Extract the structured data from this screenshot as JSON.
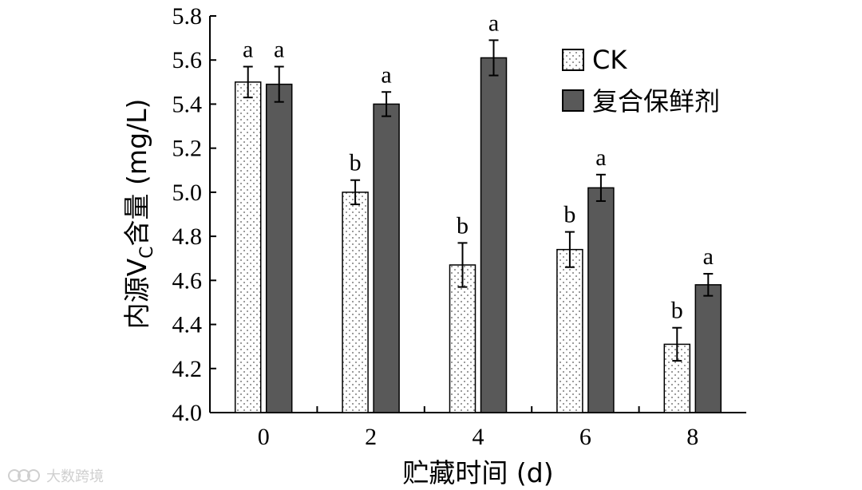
{
  "chart_data": {
    "type": "bar",
    "xlabel": "贮藏时间 (d)",
    "ylabel": {
      "prefix": "内源V",
      "subscript": "C",
      "suffix": "含量 (mg/L)"
    },
    "categories": [
      "0",
      "2",
      "4",
      "6",
      "8"
    ],
    "ylim": [
      4.0,
      5.8
    ],
    "yticks": [
      "4.0",
      "4.2",
      "4.4",
      "4.6",
      "4.8",
      "5.0",
      "5.2",
      "5.4",
      "5.6",
      "5.8"
    ],
    "legend_position": "top-right",
    "grid": false,
    "series": [
      {
        "name": "CK",
        "fill": "dotted-white",
        "values": [
          5.5,
          5.0,
          4.67,
          4.74,
          4.31
        ],
        "errors": [
          0.07,
          0.055,
          0.1,
          0.08,
          0.075
        ],
        "labels": [
          "a",
          "b",
          "b",
          "b",
          "b"
        ]
      },
      {
        "name": "复合保鲜剂",
        "fill": "#595959",
        "values": [
          5.49,
          5.4,
          5.61,
          5.02,
          4.58
        ],
        "errors": [
          0.08,
          0.055,
          0.08,
          0.06,
          0.05
        ],
        "labels": [
          "a",
          "a",
          "a",
          "a",
          "a"
        ]
      }
    ]
  },
  "watermark": {
    "text": "大数跨境",
    "icon": "watermark-logo-icon"
  }
}
